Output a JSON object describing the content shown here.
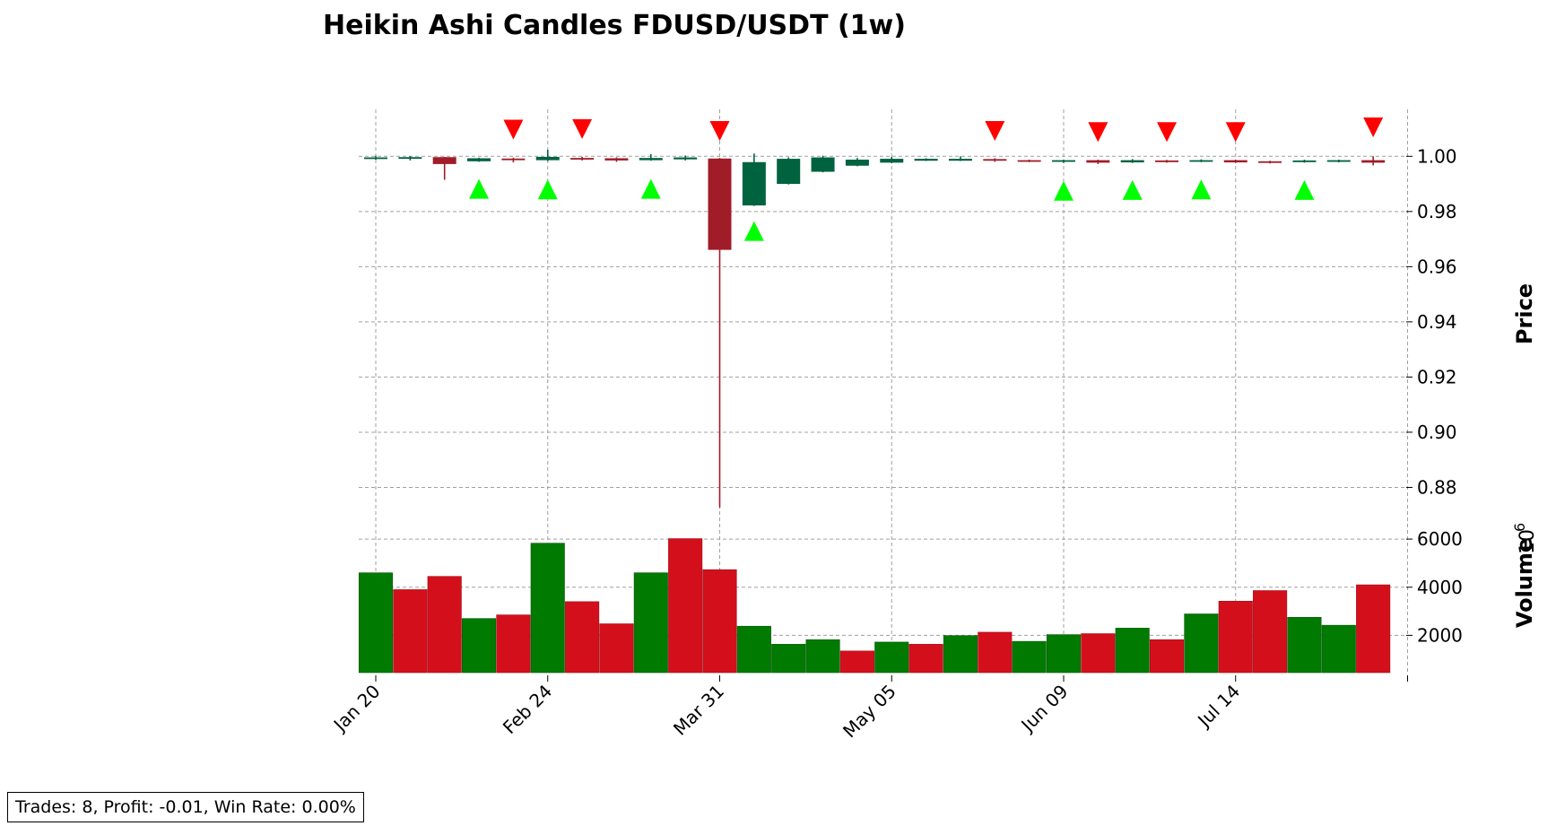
{
  "chart_data": {
    "type": "candlestick",
    "title": "Heikin Ashi Candles FDUSD/USDT (1w)",
    "ylabel_price": "Price",
    "ylabel_volume": "Volume",
    "volume_scale_label": "10",
    "volume_scale_exponent": "6",
    "price_ylim": [
      0.8665,
      1.017
    ],
    "price_ticks": [
      "0.88",
      "0.90",
      "0.92",
      "0.94",
      "0.96",
      "0.98",
      "1.00"
    ],
    "price_tick_values": [
      0.88,
      0.9,
      0.92,
      0.94,
      0.96,
      0.98,
      1.0
    ],
    "volume_ylim": [
      450,
      6600
    ],
    "volume_ticks": [
      "2000",
      "4000",
      "6000"
    ],
    "volume_tick_values": [
      2000,
      4000,
      6000
    ],
    "x_tick_labels": [
      "Jan 20",
      "Feb 24",
      "Mar 31",
      "May 05",
      "Jun 09",
      "Jul 14"
    ],
    "x_tick_indices": [
      0,
      5,
      10,
      15,
      20,
      25
    ],
    "grid": true,
    "colors": {
      "up_candle": "#006340",
      "down_candle": "#a01c28",
      "up_volume": "#007a00",
      "down_volume": "#d40f1c",
      "buy_marker": "#00ff00",
      "sell_marker": "#ff0000"
    },
    "candles": [
      {
        "open": 0.9992,
        "high": 1.0002,
        "low": 0.9988,
        "close": 0.9996,
        "dir": "up"
      },
      {
        "open": 0.9993,
        "high": 1.0001,
        "low": 0.9985,
        "close": 0.9997,
        "dir": "up"
      },
      {
        "open": 0.9997,
        "high": 0.9998,
        "low": 0.9915,
        "close": 0.9972,
        "dir": "down"
      },
      {
        "open": 0.9982,
        "high": 0.9995,
        "low": 0.998,
        "close": 0.9993,
        "dir": "up"
      },
      {
        "open": 0.9992,
        "high": 0.9995,
        "low": 0.9978,
        "close": 0.9986,
        "dir": "down"
      },
      {
        "open": 0.9986,
        "high": 1.0024,
        "low": 0.9983,
        "close": 0.9998,
        "dir": "up"
      },
      {
        "open": 0.9994,
        "high": 0.9998,
        "low": 0.9985,
        "close": 0.999,
        "dir": "down"
      },
      {
        "open": 0.9993,
        "high": 0.9996,
        "low": 0.998,
        "close": 0.9985,
        "dir": "down"
      },
      {
        "open": 0.9986,
        "high": 1.0008,
        "low": 0.9984,
        "close": 0.9994,
        "dir": "up"
      },
      {
        "open": 0.9989,
        "high": 1.0003,
        "low": 0.9985,
        "close": 0.9996,
        "dir": "up"
      },
      {
        "open": 0.9992,
        "high": 0.9994,
        "low": 0.8727,
        "close": 0.9661,
        "dir": "down"
      },
      {
        "open": 0.9822,
        "high": 1.001,
        "low": 0.982,
        "close": 0.9979,
        "dir": "up"
      },
      {
        "open": 0.99,
        "high": 0.9996,
        "low": 0.9898,
        "close": 0.9991,
        "dir": "up"
      },
      {
        "open": 0.9944,
        "high": 1.0002,
        "low": 0.9942,
        "close": 0.9996,
        "dir": "up"
      },
      {
        "open": 0.9966,
        "high": 0.9994,
        "low": 0.9964,
        "close": 0.9988,
        "dir": "up"
      },
      {
        "open": 0.9977,
        "high": 0.9998,
        "low": 0.9975,
        "close": 0.9991,
        "dir": "up"
      },
      {
        "open": 0.9984,
        "high": 0.9993,
        "low": 0.9983,
        "close": 0.9991,
        "dir": "up"
      },
      {
        "open": 0.9984,
        "high": 1.0,
        "low": 0.9983,
        "close": 0.9991,
        "dir": "up"
      },
      {
        "open": 0.999,
        "high": 0.9993,
        "low": 0.998,
        "close": 0.9984,
        "dir": "down"
      },
      {
        "open": 0.9986,
        "high": 0.9988,
        "low": 0.9979,
        "close": 0.9982,
        "dir": "down"
      },
      {
        "open": 0.998,
        "high": 0.9988,
        "low": 0.9976,
        "close": 0.9986,
        "dir": "up"
      },
      {
        "open": 0.9986,
        "high": 0.9988,
        "low": 0.9972,
        "close": 0.9977,
        "dir": "down"
      },
      {
        "open": 0.9978,
        "high": 0.999,
        "low": 0.9976,
        "close": 0.9986,
        "dir": "up"
      },
      {
        "open": 0.9985,
        "high": 0.9987,
        "low": 0.9977,
        "close": 0.9979,
        "dir": "down"
      },
      {
        "open": 0.9981,
        "high": 0.9989,
        "low": 0.9979,
        "close": 0.9986,
        "dir": "up"
      },
      {
        "open": 0.9986,
        "high": 0.9988,
        "low": 0.9976,
        "close": 0.9978,
        "dir": "down"
      },
      {
        "open": 0.9982,
        "high": 0.9984,
        "low": 0.9974,
        "close": 0.9978,
        "dir": "down"
      },
      {
        "open": 0.9979,
        "high": 0.9988,
        "low": 0.9977,
        "close": 0.9985,
        "dir": "up"
      },
      {
        "open": 0.998,
        "high": 0.9988,
        "low": 0.9978,
        "close": 0.9986,
        "dir": "up"
      },
      {
        "open": 0.9986,
        "high": 1.0,
        "low": 0.9967,
        "close": 0.9977,
        "dir": "down"
      }
    ],
    "volumes": [
      {
        "value": 4600,
        "dir": "up"
      },
      {
        "value": 3900,
        "dir": "down"
      },
      {
        "value": 4450,
        "dir": "down"
      },
      {
        "value": 2700,
        "dir": "up"
      },
      {
        "value": 2850,
        "dir": "down"
      },
      {
        "value": 5830,
        "dir": "up"
      },
      {
        "value": 3400,
        "dir": "down"
      },
      {
        "value": 2480,
        "dir": "down"
      },
      {
        "value": 4600,
        "dir": "up"
      },
      {
        "value": 6020,
        "dir": "down"
      },
      {
        "value": 4730,
        "dir": "down"
      },
      {
        "value": 2380,
        "dir": "up"
      },
      {
        "value": 1630,
        "dir": "up"
      },
      {
        "value": 1820,
        "dir": "up"
      },
      {
        "value": 1350,
        "dir": "down"
      },
      {
        "value": 1720,
        "dir": "up"
      },
      {
        "value": 1630,
        "dir": "down"
      },
      {
        "value": 1990,
        "dir": "up"
      },
      {
        "value": 2130,
        "dir": "down"
      },
      {
        "value": 1750,
        "dir": "up"
      },
      {
        "value": 2030,
        "dir": "up"
      },
      {
        "value": 2070,
        "dir": "down"
      },
      {
        "value": 2300,
        "dir": "up"
      },
      {
        "value": 1820,
        "dir": "down"
      },
      {
        "value": 2890,
        "dir": "up"
      },
      {
        "value": 3420,
        "dir": "down"
      },
      {
        "value": 3860,
        "dir": "down"
      },
      {
        "value": 2750,
        "dir": "up"
      },
      {
        "value": 2420,
        "dir": "up"
      },
      {
        "value": 4100,
        "dir": "down"
      }
    ],
    "buy_signals": [
      {
        "index": 3,
        "price": 0.9882
      },
      {
        "index": 5,
        "price": 0.988
      },
      {
        "index": 8,
        "price": 0.9882
      },
      {
        "index": 11,
        "price": 0.9729
      },
      {
        "index": 20,
        "price": 0.9875
      },
      {
        "index": 22,
        "price": 0.9878
      },
      {
        "index": 24,
        "price": 0.988
      },
      {
        "index": 27,
        "price": 0.9878
      }
    ],
    "sell_signals": [
      {
        "index": 4,
        "price": 1.0097
      },
      {
        "index": 6,
        "price": 1.0099
      },
      {
        "index": 10,
        "price": 1.0092
      },
      {
        "index": 18,
        "price": 1.0092
      },
      {
        "index": 21,
        "price": 1.0088
      },
      {
        "index": 23,
        "price": 1.0088
      },
      {
        "index": 25,
        "price": 1.0088
      },
      {
        "index": 29,
        "price": 1.0105
      }
    ]
  },
  "stats": {
    "text": "Trades: 8, Profit: -0.01, Win Rate: 0.00%"
  }
}
